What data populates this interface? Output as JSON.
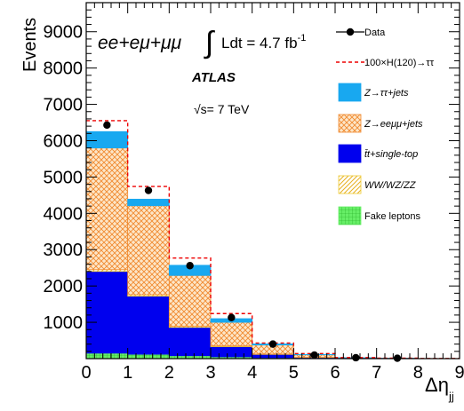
{
  "chart_data": {
    "type": "bar",
    "stacked": true,
    "xlabel_main": "Δη",
    "xlabel_sub": "jj",
    "ylabel": "Events",
    "xlim": [
      0,
      9
    ],
    "ylim": [
      0,
      9800
    ],
    "x_ticks": [
      "0",
      "1",
      "2",
      "3",
      "4",
      "5",
      "6",
      "7",
      "8",
      "9"
    ],
    "y_ticks": [
      {
        "value": 1000,
        "label": "1000"
      },
      {
        "value": 2000,
        "label": "2000"
      },
      {
        "value": 3000,
        "label": "3000"
      },
      {
        "value": 4000,
        "label": "4000"
      },
      {
        "value": 5000,
        "label": "5000"
      },
      {
        "value": 6000,
        "label": "6000"
      },
      {
        "value": 7000,
        "label": "7000"
      },
      {
        "value": 8000,
        "label": "8000"
      },
      {
        "value": 9000,
        "label": "9000"
      }
    ],
    "bin_edges": [
      0,
      1,
      2,
      3,
      4,
      5,
      6,
      7,
      8,
      9
    ],
    "series": [
      {
        "name": "Fake leptons",
        "color": "#66ee66",
        "pattern": "grid",
        "values": [
          150,
          120,
          80,
          50,
          25,
          10,
          4,
          2,
          1
        ]
      },
      {
        "name": "t̄t+single-top",
        "color": "#0000ee",
        "pattern": "solid",
        "values": [
          2250,
          1600,
          780,
          280,
          90,
          20,
          6,
          2,
          1
        ]
      },
      {
        "name": "WW/WZ/ZZ",
        "color": "#eecc33",
        "pattern": "diagonal",
        "values": [
          50,
          40,
          30,
          20,
          10,
          5,
          2,
          1,
          0
        ]
      },
      {
        "name": "Z→eeμμ+jets",
        "color": "#f4a460",
        "pattern": "crosshatch",
        "values": [
          3350,
          2450,
          1400,
          650,
          250,
          70,
          10,
          5,
          2
        ]
      },
      {
        "name": "Z→ττ+jets",
        "color": "#18a8f0",
        "pattern": "solid",
        "values": [
          450,
          180,
          280,
          100,
          30,
          10,
          3,
          1,
          0
        ]
      }
    ],
    "signal": {
      "name": "100×H(120)→ττ",
      "color": "#ee0000",
      "style": "dashed",
      "values": [
        6550,
        4740,
        2770,
        1240,
        430,
        140,
        30,
        12,
        5
      ]
    },
    "data": {
      "name": "Data",
      "color": "#000000",
      "x": [
        0.5,
        1.5,
        2.5,
        3.5,
        4.5,
        5.5,
        6.5,
        7.5
      ],
      "y": [
        6430,
        4630,
        2560,
        1130,
        400,
        100,
        25,
        10
      ]
    },
    "annotations": {
      "channel": "ee+eμ+μμ",
      "lumi": "Ldt = 4.7 fb",
      "lumi_exp": "-1",
      "experiment": "ATLAS",
      "energy": "√s= 7 TeV"
    },
    "legend": {
      "placement": "top-right",
      "entries": [
        {
          "label": "Data",
          "kind": "data"
        },
        {
          "label": "100×H(120)→ττ",
          "kind": "signal"
        },
        {
          "label": "Z→ττ+jets",
          "kind": "series",
          "series": 4
        },
        {
          "label": "Z→eeμμ+jets",
          "kind": "series",
          "series": 3
        },
        {
          "label": "t̄t+single-top",
          "kind": "series",
          "series": 1
        },
        {
          "label": "WW/WZ/ZZ",
          "kind": "series",
          "series": 2
        },
        {
          "label": "Fake leptons",
          "kind": "series",
          "series": 0
        }
      ]
    }
  }
}
